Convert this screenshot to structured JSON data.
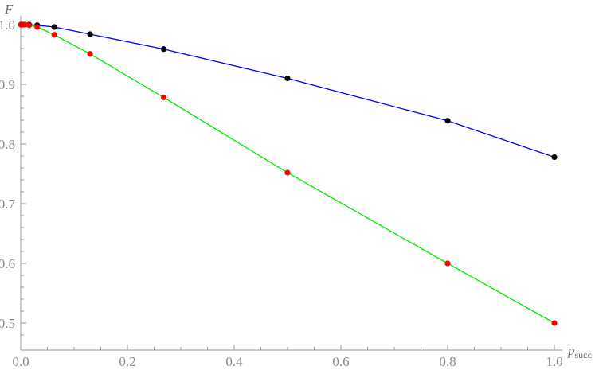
{
  "chart_data": {
    "type": "line",
    "xlabel": "p",
    "xlabel_sub": "succ",
    "ylabel": "F",
    "xlim": [
      0,
      1
    ],
    "ylim": [
      0.48,
      1.0
    ],
    "xticks": [
      "0.0",
      "0.2",
      "0.4",
      "0.6",
      "0.8",
      "1.0"
    ],
    "yticks": [
      "0.5",
      "0.6",
      "0.7",
      "0.8",
      "0.9",
      "1.0"
    ],
    "grid": false,
    "legend": "none",
    "series": [
      {
        "line_color": "#0000ff",
        "marker_color": "#000000",
        "points": [
          [
            0.0005,
            1.0
          ],
          [
            0.001,
            1.0
          ],
          [
            0.002,
            1.0
          ],
          [
            0.004,
            1.0
          ],
          [
            0.008,
            1.0
          ],
          [
            0.016,
            1.0
          ],
          [
            0.031,
            0.999
          ],
          [
            0.063,
            0.996
          ],
          [
            0.13,
            0.984
          ],
          [
            0.268,
            0.959
          ],
          [
            0.5,
            0.91
          ],
          [
            0.8,
            0.839
          ],
          [
            1.0,
            0.778
          ]
        ]
      },
      {
        "line_color": "#00e600",
        "marker_color": "#ff0000",
        "points": [
          [
            0.0005,
            1.0
          ],
          [
            0.001,
            1.0
          ],
          [
            0.002,
            1.0
          ],
          [
            0.004,
            1.0
          ],
          [
            0.008,
            1.0
          ],
          [
            0.016,
            0.999
          ],
          [
            0.031,
            0.996
          ],
          [
            0.063,
            0.983
          ],
          [
            0.13,
            0.951
          ],
          [
            0.268,
            0.878
          ],
          [
            0.5,
            0.752
          ],
          [
            0.8,
            0.6
          ],
          [
            1.0,
            0.5
          ]
        ]
      }
    ]
  }
}
